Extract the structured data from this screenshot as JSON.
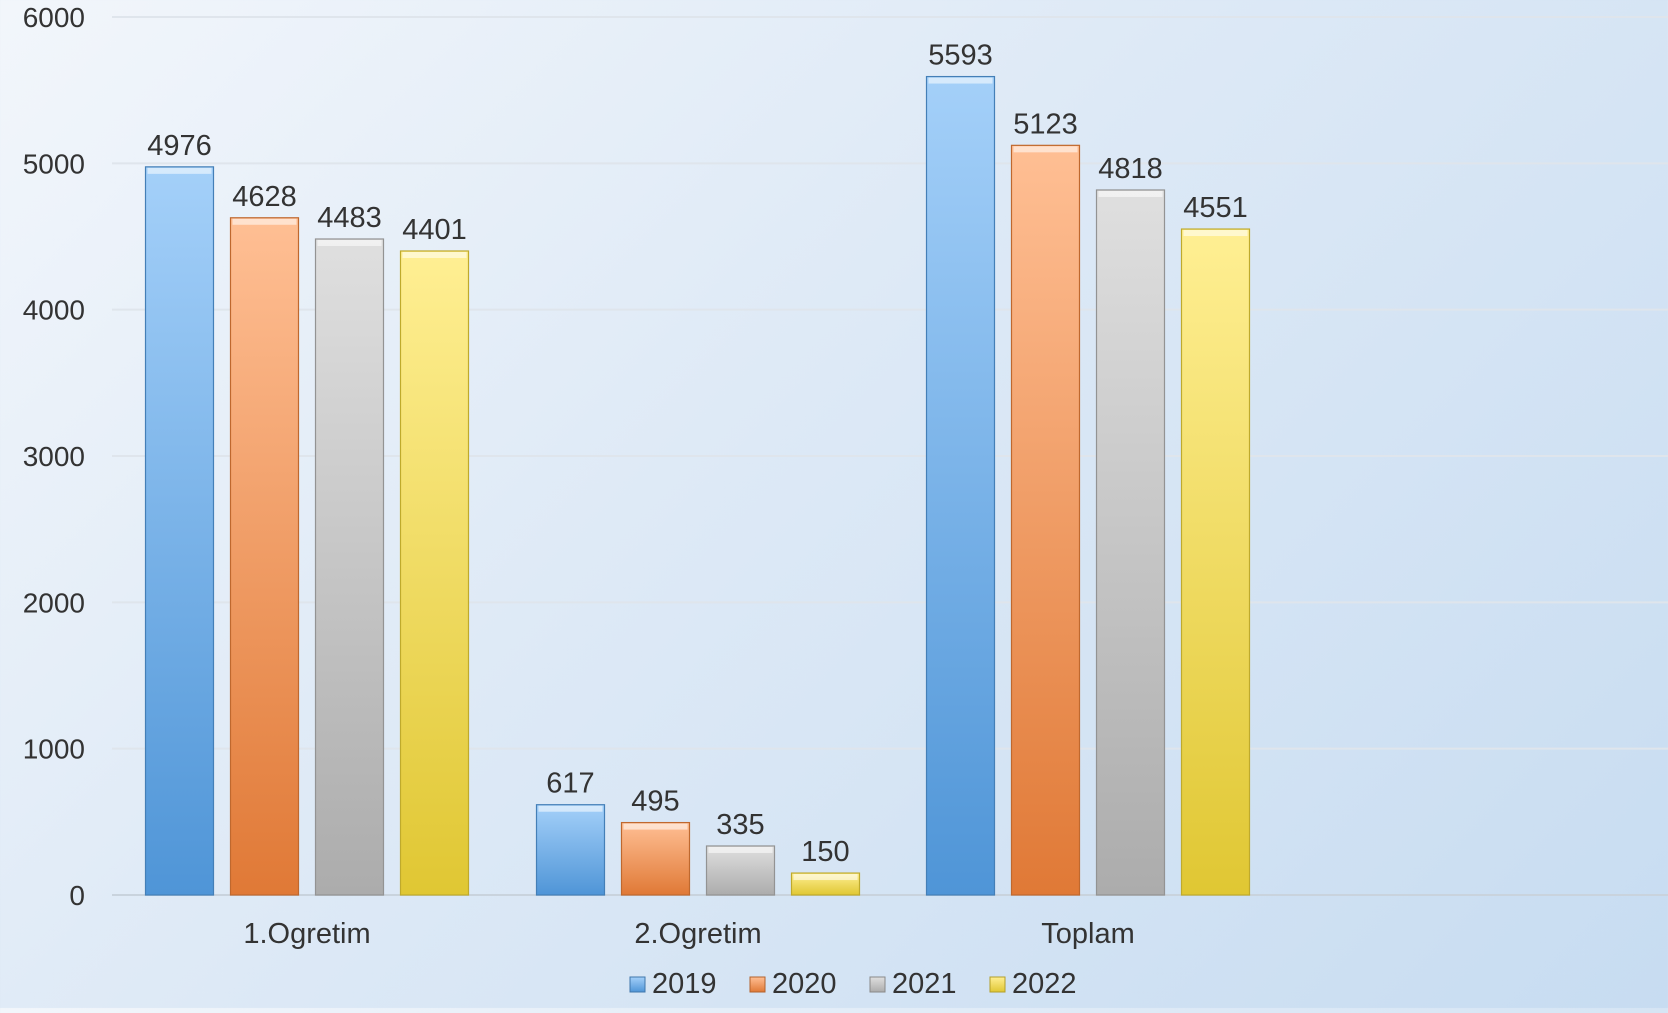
{
  "chart_data": {
    "type": "bar",
    "title": "",
    "xlabel": "",
    "ylabel": "",
    "categories": [
      "1.Ogretim",
      "2.Ogretim",
      "Toplam"
    ],
    "series": [
      {
        "name": "2019",
        "values": [
          4976,
          617,
          5593
        ],
        "color": "#5aa9f4"
      },
      {
        "name": "2020",
        "values": [
          4628,
          495,
          5123
        ],
        "color": "#ff8a3d"
      },
      {
        "name": "2021",
        "values": [
          4483,
          335,
          4818
        ],
        "color": "#c4c4c4"
      },
      {
        "name": "2022",
        "values": [
          4401,
          150,
          4551
        ],
        "color": "#ffe23a"
      }
    ],
    "ylim": [
      0,
      6000
    ],
    "yticks": [
      0,
      1000,
      2000,
      3000,
      4000,
      5000,
      6000
    ],
    "grid": true,
    "legend_position": "bottom"
  }
}
